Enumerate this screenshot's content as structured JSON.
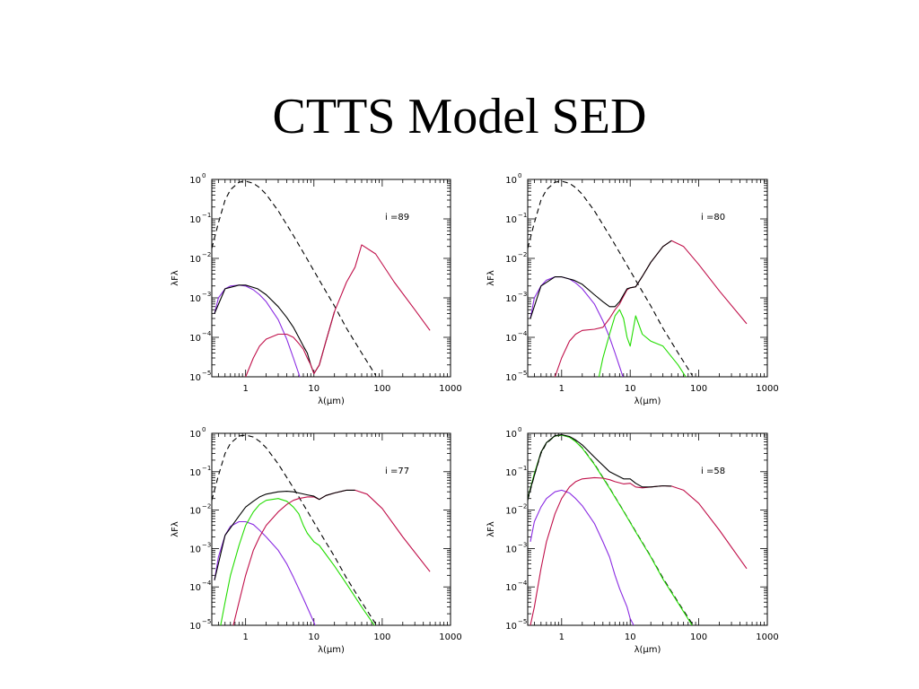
{
  "slide": {
    "title": "CTTS Model SED"
  },
  "chart_data": [
    {
      "type": "line",
      "annotation": "i =89",
      "xlabel": "λ(μm)",
      "ylabel": "λFλ",
      "xscale": "log",
      "yscale": "log",
      "xlim": [
        0.32,
        1000
      ],
      "ylim": [
        1e-05,
        1
      ],
      "xticks": [
        "1",
        "10",
        "100",
        "1000"
      ],
      "yticks": [
        {
          "base": "10",
          "exp": "0"
        },
        {
          "base": "10",
          "exp": "−1"
        },
        {
          "base": "10",
          "exp": "−2"
        },
        {
          "base": "10",
          "exp": "−3"
        },
        {
          "base": "10",
          "exp": "−4"
        },
        {
          "base": "10",
          "exp": "−5"
        }
      ],
      "series": [
        {
          "color": "#000000",
          "dash": true,
          "x": [
            0.32,
            0.4,
            0.5,
            0.6,
            0.8,
            1.0,
            1.3,
            1.6,
            2,
            3,
            5,
            8,
            12,
            20,
            30,
            50,
            80
          ],
          "y": [
            0.018,
            0.08,
            0.3,
            0.55,
            0.85,
            0.9,
            0.8,
            0.62,
            0.42,
            0.16,
            0.038,
            0.0095,
            0.0028,
            0.00062,
            0.00017,
            4e-05,
            1.1e-05
          ]
        },
        {
          "color": "#8a2be2",
          "x": [
            0.35,
            0.4,
            0.5,
            0.6,
            0.8,
            1.0,
            1.3,
            1.6,
            2,
            3,
            4,
            5,
            6,
            7
          ],
          "y": [
            0.0004,
            0.001,
            0.0017,
            0.002,
            0.0021,
            0.002,
            0.0016,
            0.0012,
            0.0008,
            0.00028,
            9e-05,
            3e-05,
            1.2e-05,
            5e-06
          ]
        },
        {
          "color": "#000000",
          "x": [
            0.35,
            0.5,
            0.8,
            1.0,
            1.5,
            2,
            3,
            4,
            5,
            6,
            7,
            8,
            9,
            10,
            12,
            15,
            20
          ],
          "y": [
            0.0004,
            0.0017,
            0.0021,
            0.0021,
            0.0017,
            0.0012,
            0.0006,
            0.00032,
            0.00018,
            0.0001,
            6e-05,
            4e-05,
            2e-05,
            1.2e-05,
            2e-05,
            8e-05,
            0.00045
          ]
        },
        {
          "color": "#c0104a",
          "x": [
            1.0,
            1.3,
            1.6,
            2,
            3,
            4,
            5,
            6,
            7,
            8,
            9,
            10,
            12,
            15,
            20,
            30,
            40,
            50,
            80,
            150,
            300,
            500
          ],
          "y": [
            1e-05,
            3e-05,
            6e-05,
            9e-05,
            0.00012,
            0.00012,
            0.0001,
            7e-05,
            5e-05,
            3e-05,
            2e-05,
            1.2e-05,
            2e-05,
            8e-05,
            0.00045,
            0.0025,
            0.006,
            0.022,
            0.013,
            0.0025,
            0.0005,
            0.00015
          ]
        }
      ]
    },
    {
      "type": "line",
      "annotation": "i =80",
      "xlabel": "λ(μm)",
      "ylabel": "λFλ",
      "xscale": "log",
      "yscale": "log",
      "xlim": [
        0.32,
        1000
      ],
      "ylim": [
        1e-05,
        1
      ],
      "xticks": [
        "1",
        "10",
        "100",
        "1000"
      ],
      "yticks": [
        {
          "base": "10",
          "exp": "0"
        },
        {
          "base": "10",
          "exp": "−1"
        },
        {
          "base": "10",
          "exp": "−2"
        },
        {
          "base": "10",
          "exp": "−3"
        },
        {
          "base": "10",
          "exp": "−4"
        },
        {
          "base": "10",
          "exp": "−5"
        }
      ],
      "series": [
        {
          "color": "#000000",
          "dash": true,
          "x": [
            0.32,
            0.4,
            0.5,
            0.6,
            0.8,
            1.0,
            1.3,
            1.6,
            2,
            3,
            5,
            8,
            12,
            20,
            30,
            50,
            80
          ],
          "y": [
            0.018,
            0.08,
            0.3,
            0.55,
            0.85,
            0.9,
            0.8,
            0.62,
            0.42,
            0.16,
            0.038,
            0.0095,
            0.0028,
            0.00062,
            0.00017,
            4e-05,
            1.1e-05
          ]
        },
        {
          "color": "#8a2be2",
          "x": [
            0.35,
            0.4,
            0.5,
            0.6,
            0.8,
            1.0,
            1.3,
            1.6,
            2,
            3,
            4,
            5,
            6,
            7,
            8
          ],
          "y": [
            0.0003,
            0.001,
            0.002,
            0.0028,
            0.0034,
            0.0034,
            0.003,
            0.0024,
            0.0017,
            0.0007,
            0.00026,
            0.0001,
            4e-05,
            1.8e-05,
            9e-06
          ]
        },
        {
          "color": "#22dd00",
          "x": [
            3.5,
            4,
            5,
            6,
            7,
            8,
            9,
            10,
            12,
            15,
            20,
            30,
            50,
            70
          ],
          "y": [
            1e-05,
            3e-05,
            0.00012,
            0.00035,
            0.0005,
            0.0003,
            0.0001,
            6e-05,
            0.00035,
            0.00012,
            8e-05,
            6e-05,
            2e-05,
            8e-06
          ]
        },
        {
          "color": "#c0104a",
          "x": [
            0.8,
            1.0,
            1.3,
            1.6,
            2,
            3,
            4,
            5,
            6,
            7,
            8,
            9,
            10,
            12,
            15,
            20,
            30,
            40,
            60,
            100,
            200,
            500
          ],
          "y": [
            1e-05,
            3e-05,
            8e-05,
            0.00012,
            0.00015,
            0.00016,
            0.00018,
            0.0003,
            0.0005,
            0.0007,
            0.0011,
            0.0016,
            0.0018,
            0.0019,
            0.0035,
            0.008,
            0.02,
            0.028,
            0.02,
            0.007,
            0.0015,
            0.00022
          ]
        },
        {
          "color": "#000000",
          "x": [
            0.35,
            0.5,
            0.8,
            1.0,
            1.5,
            2,
            3,
            4,
            5,
            6,
            7,
            8,
            9,
            10,
            12,
            15,
            20,
            30,
            40
          ],
          "y": [
            0.0003,
            0.002,
            0.0034,
            0.0034,
            0.0028,
            0.0022,
            0.0012,
            0.0008,
            0.0006,
            0.0006,
            0.0008,
            0.0012,
            0.0017,
            0.0018,
            0.0019,
            0.0035,
            0.008,
            0.02,
            0.028
          ]
        }
      ]
    },
    {
      "type": "line",
      "annotation": "i =77",
      "xlabel": "λ(μm)",
      "ylabel": "λFλ",
      "xscale": "log",
      "yscale": "log",
      "xlim": [
        0.32,
        1000
      ],
      "ylim": [
        1e-05,
        1
      ],
      "xticks": [
        "1",
        "10",
        "100",
        "1000"
      ],
      "yticks": [
        {
          "base": "10",
          "exp": "0"
        },
        {
          "base": "10",
          "exp": "−1"
        },
        {
          "base": "10",
          "exp": "−2"
        },
        {
          "base": "10",
          "exp": "−3"
        },
        {
          "base": "10",
          "exp": "−4"
        },
        {
          "base": "10",
          "exp": "−5"
        }
      ],
      "series": [
        {
          "color": "#000000",
          "dash": true,
          "x": [
            0.32,
            0.4,
            0.5,
            0.6,
            0.8,
            1.0,
            1.3,
            1.6,
            2,
            3,
            5,
            8,
            12,
            20,
            30,
            50,
            80
          ],
          "y": [
            0.018,
            0.08,
            0.3,
            0.55,
            0.85,
            0.9,
            0.8,
            0.62,
            0.42,
            0.16,
            0.038,
            0.0095,
            0.0028,
            0.00062,
            0.00017,
            4e-05,
            1.1e-05
          ]
        },
        {
          "color": "#8a2be2",
          "x": [
            0.35,
            0.4,
            0.5,
            0.6,
            0.8,
            1.0,
            1.3,
            1.6,
            2,
            3,
            4,
            5,
            7,
            10,
            12
          ],
          "y": [
            0.00015,
            0.0006,
            0.0022,
            0.0038,
            0.005,
            0.005,
            0.0042,
            0.003,
            0.002,
            0.0009,
            0.0004,
            0.00018,
            5e-05,
            1.2e-05,
            5e-06
          ]
        },
        {
          "color": "#22dd00",
          "x": [
            0.4,
            0.5,
            0.6,
            0.8,
            1.0,
            1.3,
            1.6,
            2,
            3,
            4,
            5,
            6,
            7,
            8,
            10,
            12,
            15,
            20,
            30,
            50,
            80
          ],
          "y": [
            5e-06,
            4e-05,
            0.0002,
            0.0012,
            0.004,
            0.009,
            0.014,
            0.018,
            0.02,
            0.017,
            0.012,
            0.008,
            0.004,
            0.0025,
            0.0015,
            0.0012,
            0.0007,
            0.00035,
            0.00012,
            3e-05,
            9e-06
          ]
        },
        {
          "color": "#c0104a",
          "x": [
            0.6,
            0.8,
            1.0,
            1.3,
            1.6,
            2,
            3,
            4,
            5,
            6,
            8,
            10,
            12,
            15,
            20,
            30,
            40,
            60,
            100,
            200,
            500
          ],
          "y": [
            5e-06,
            4e-05,
            0.0002,
            0.0009,
            0.002,
            0.004,
            0.009,
            0.014,
            0.018,
            0.02,
            0.022,
            0.022,
            0.019,
            0.024,
            0.028,
            0.033,
            0.033,
            0.026,
            0.011,
            0.002,
            0.00025
          ]
        },
        {
          "color": "#000000",
          "x": [
            0.35,
            0.5,
            0.8,
            1.0,
            1.3,
            1.6,
            2,
            3,
            4,
            5,
            6,
            8,
            10,
            12,
            15,
            20,
            30,
            40
          ],
          "y": [
            0.00015,
            0.0022,
            0.007,
            0.012,
            0.017,
            0.022,
            0.026,
            0.03,
            0.031,
            0.03,
            0.028,
            0.025,
            0.023,
            0.019,
            0.024,
            0.028,
            0.033,
            0.033
          ]
        }
      ]
    },
    {
      "type": "line",
      "annotation": "i =58",
      "xlabel": "λ(μm)",
      "ylabel": "λFλ",
      "xscale": "log",
      "yscale": "log",
      "xlim": [
        0.32,
        1000
      ],
      "ylim": [
        1e-05,
        1
      ],
      "xticks": [
        "1",
        "10",
        "100",
        "1000"
      ],
      "yticks": [
        {
          "base": "10",
          "exp": "0"
        },
        {
          "base": "10",
          "exp": "−1"
        },
        {
          "base": "10",
          "exp": "−2"
        },
        {
          "base": "10",
          "exp": "−3"
        },
        {
          "base": "10",
          "exp": "−4"
        },
        {
          "base": "10",
          "exp": "−5"
        }
      ],
      "series": [
        {
          "color": "#000000",
          "dash": true,
          "x": [
            0.32,
            0.4,
            0.5,
            0.6,
            0.8,
            1.0,
            1.3,
            1.6,
            2,
            3,
            5,
            8,
            12,
            20,
            30,
            50,
            80
          ],
          "y": [
            0.018,
            0.08,
            0.3,
            0.55,
            0.85,
            0.9,
            0.8,
            0.62,
            0.42,
            0.16,
            0.038,
            0.0095,
            0.0028,
            0.00062,
            0.00017,
            4e-05,
            1.1e-05
          ]
        },
        {
          "color": "#22dd00",
          "x": [
            0.32,
            0.4,
            0.5,
            0.6,
            0.8,
            1.0,
            1.3,
            1.6,
            2,
            3,
            5,
            8,
            12,
            20,
            30,
            50,
            80
          ],
          "y": [
            0.02,
            0.09,
            0.32,
            0.57,
            0.86,
            0.9,
            0.79,
            0.61,
            0.41,
            0.155,
            0.037,
            0.0093,
            0.0027,
            0.0006,
            0.00016,
            3.8e-05,
            1e-05
          ]
        },
        {
          "color": "#8a2be2",
          "x": [
            0.35,
            0.4,
            0.5,
            0.6,
            0.8,
            1.0,
            1.3,
            1.6,
            2,
            3,
            4,
            5,
            6,
            7,
            8,
            9,
            10,
            12,
            15
          ],
          "y": [
            0.0015,
            0.005,
            0.012,
            0.02,
            0.03,
            0.033,
            0.028,
            0.02,
            0.013,
            0.0045,
            0.0015,
            0.0006,
            0.0002,
            9e-05,
            5e-05,
            3e-05,
            1.5e-05,
            8e-06,
            5e-06
          ]
        },
        {
          "color": "#c0104a",
          "x": [
            0.35,
            0.4,
            0.5,
            0.6,
            0.8,
            1.0,
            1.3,
            1.6,
            2,
            3,
            4,
            5,
            6,
            8,
            10,
            12,
            15,
            20,
            30,
            40,
            60,
            100,
            200,
            500
          ],
          "y": [
            1e-05,
            3e-05,
            0.0003,
            0.0015,
            0.008,
            0.02,
            0.04,
            0.055,
            0.065,
            0.07,
            0.068,
            0.062,
            0.055,
            0.048,
            0.05,
            0.04,
            0.038,
            0.04,
            0.043,
            0.042,
            0.033,
            0.015,
            0.003,
            0.0003
          ]
        },
        {
          "color": "#000000",
          "x": [
            0.32,
            0.5,
            0.6,
            0.8,
            1.0,
            1.3,
            1.6,
            2,
            3,
            5,
            8,
            10,
            12,
            15,
            20,
            30,
            40
          ],
          "y": [
            0.02,
            0.32,
            0.57,
            0.87,
            0.92,
            0.83,
            0.67,
            0.5,
            0.24,
            0.1,
            0.065,
            0.065,
            0.05,
            0.04,
            0.04,
            0.043,
            0.042
          ]
        }
      ]
    }
  ]
}
